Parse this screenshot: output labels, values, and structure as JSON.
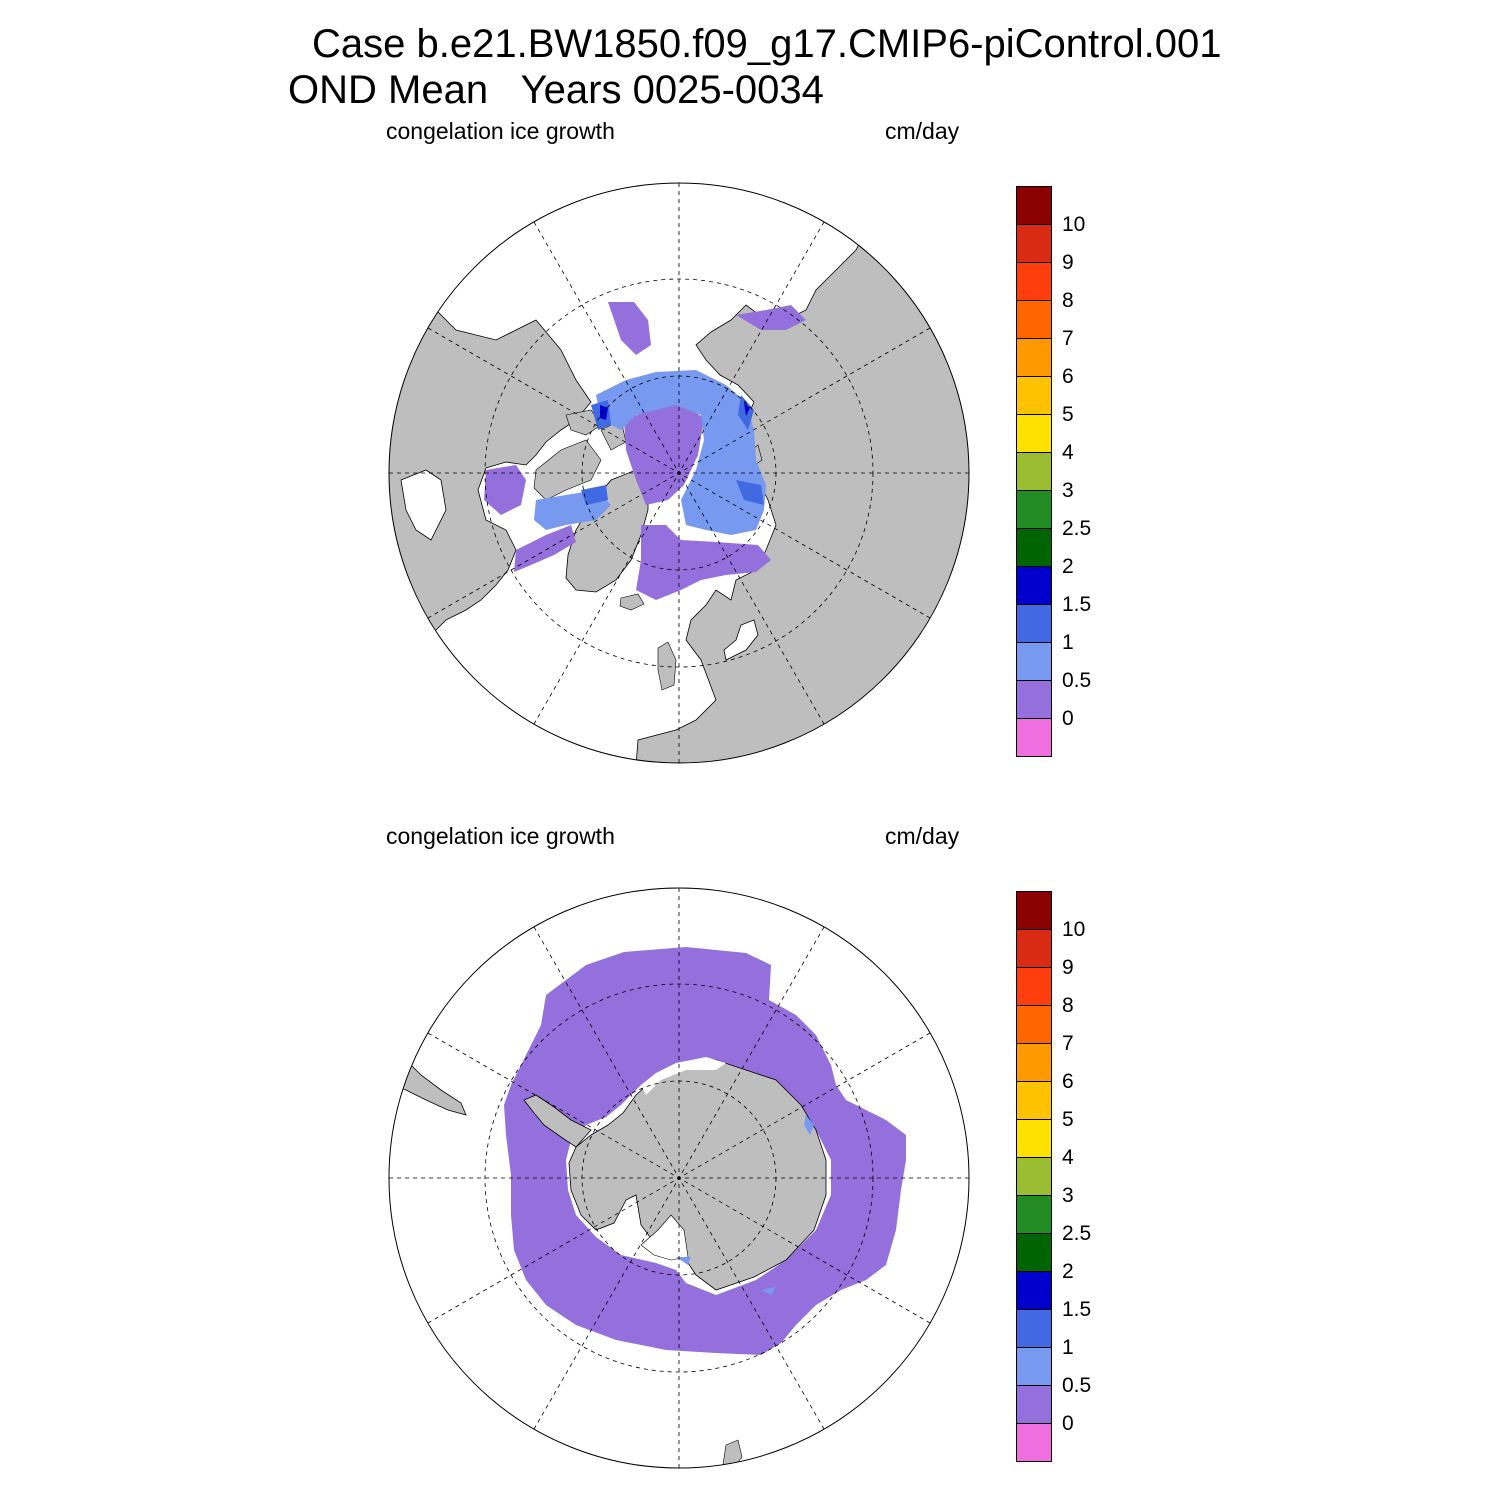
{
  "title": {
    "line1": "Case b.e21.BW1850.f09_g17.CMIP6-piControl.001",
    "line2": "OND Mean   Years 0025-0034"
  },
  "panels": [
    {
      "id": "north",
      "hemisphere": "Arctic (north polar stereographic)",
      "variable_label": "congelation ice growth",
      "units_label": "cm/day"
    },
    {
      "id": "south",
      "hemisphere": "Antarctic (south polar stereographic)",
      "variable_label": "congelation ice growth",
      "units_label": "cm/day"
    }
  ],
  "colorbar": {
    "labels": [
      "10",
      "9",
      "8",
      "7",
      "6",
      "5",
      "4",
      "3",
      "2.5",
      "2",
      "1.5",
      "1",
      "0.5",
      "0"
    ],
    "colors_top_to_bottom": [
      "#8b0000",
      "#d92b14",
      "#ff3d0d",
      "#ff6600",
      "#ff9900",
      "#ffc200",
      "#ffe100",
      "#9bbd32",
      "#238b23",
      "#006400",
      "#0000cd",
      "#4169e1",
      "#7799f0",
      "#9370db",
      "#ee6fdd"
    ]
  },
  "colors": {
    "land": "#bebebe",
    "ocean": "#ffffff",
    "ice_0_to_0_5": "#9370db",
    "ice_0_5_to_1": "#7799f0",
    "ice_1_to_1_5": "#4169e1",
    "ice_1_5_to_2": "#0000cd"
  }
}
